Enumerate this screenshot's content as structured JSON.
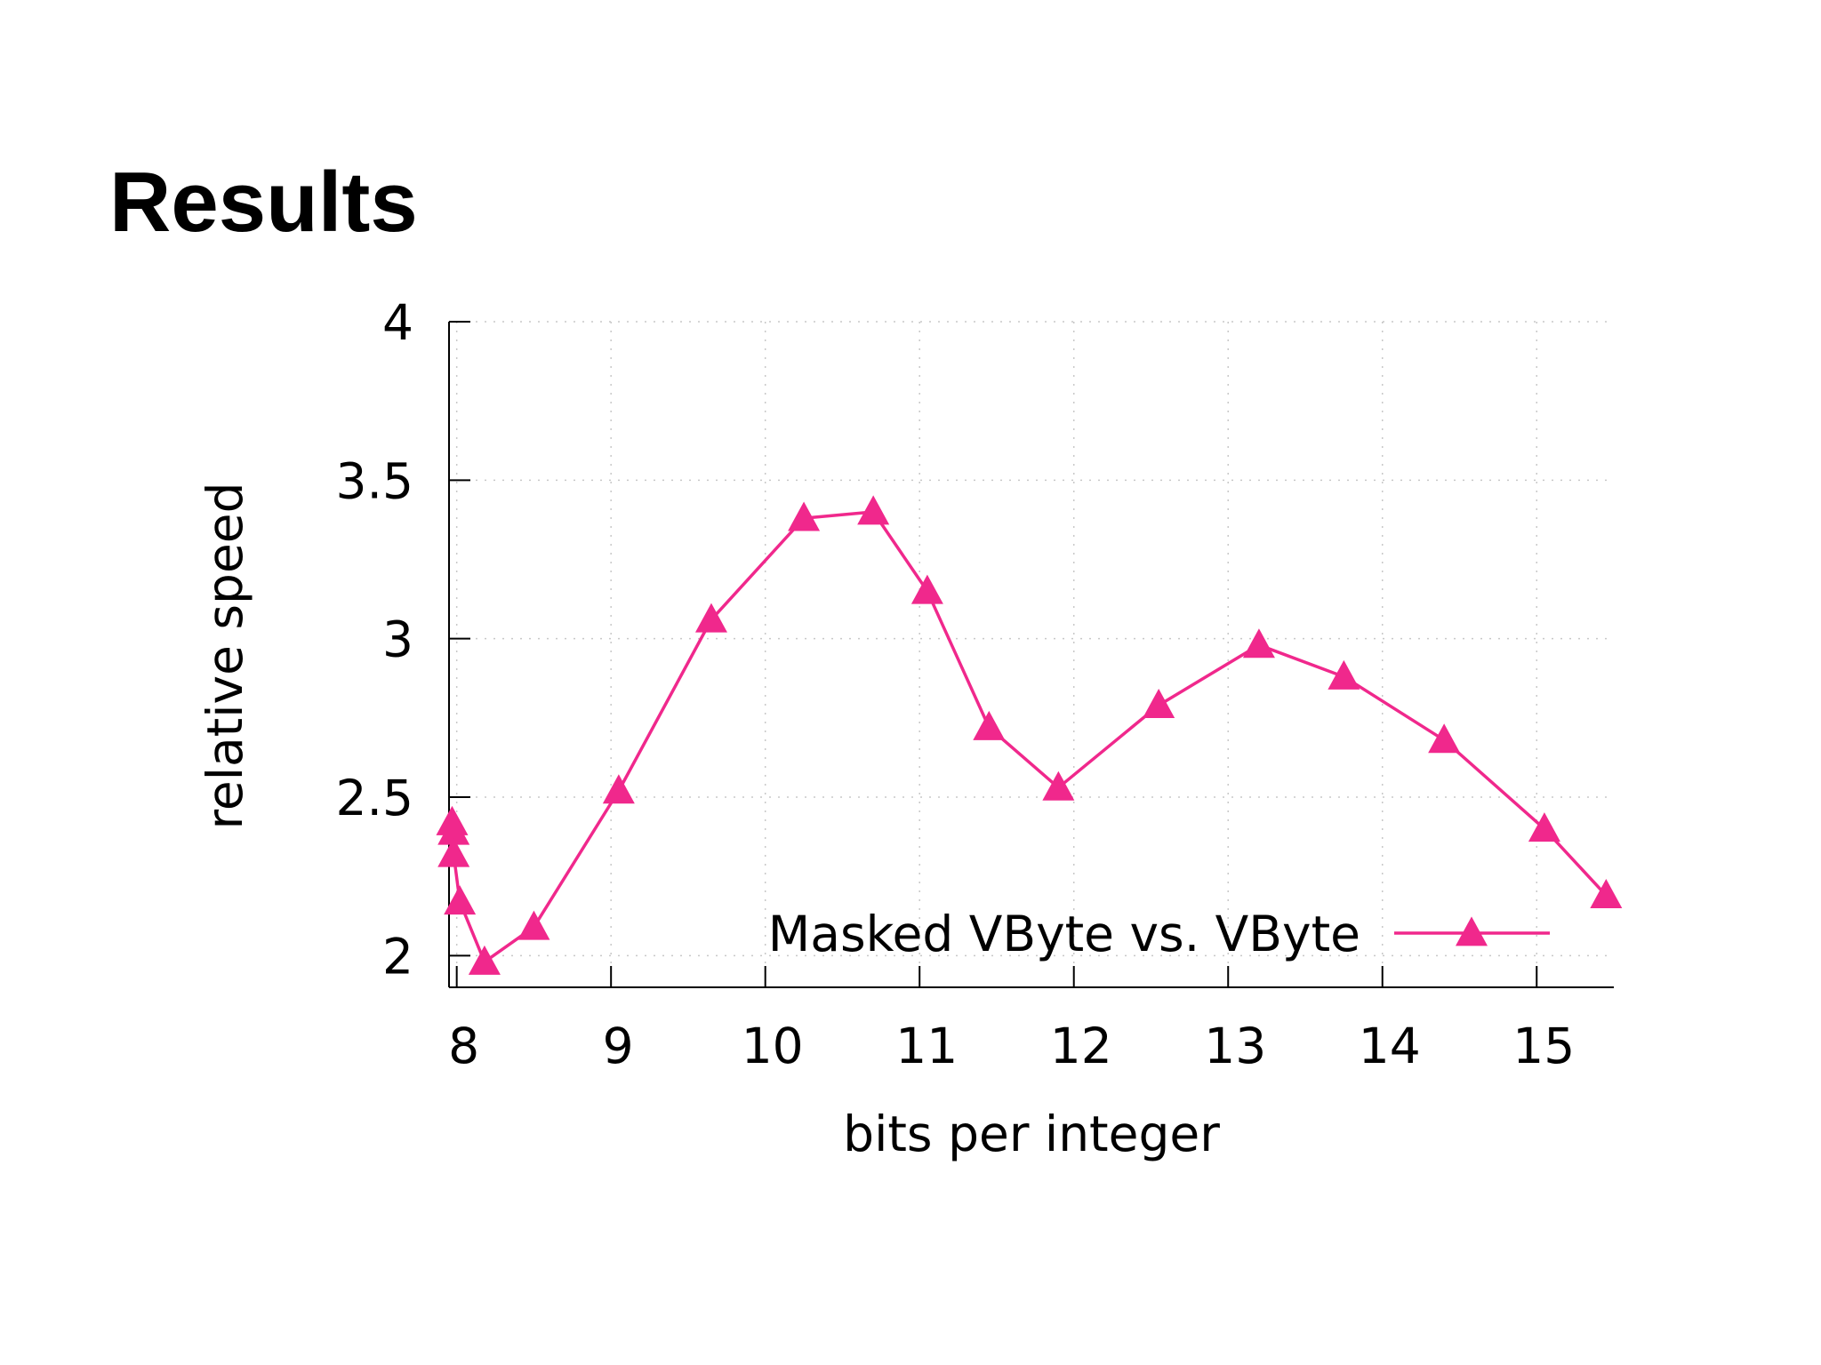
{
  "slide": {
    "title": "Results"
  },
  "chart_data": {
    "type": "line",
    "title": "",
    "xlabel": "bits per integer",
    "ylabel": "relative speed",
    "xlim": [
      7.95,
      15.5
    ],
    "ylim": [
      1.9,
      4.0
    ],
    "x_ticks": [
      8,
      9,
      10,
      11,
      12,
      13,
      14,
      15
    ],
    "y_ticks": [
      2,
      2.5,
      3,
      3.5,
      4
    ],
    "grid": true,
    "legend_position": "bottom-right",
    "series": [
      {
        "name": "Masked VByte vs.  VByte",
        "color": "#f0288c",
        "marker": "triangle",
        "x": [
          7.97,
          7.98,
          7.98,
          8.02,
          8.18,
          8.5,
          9.05,
          9.65,
          10.25,
          10.7,
          11.05,
          11.45,
          11.9,
          12.55,
          13.2,
          13.75,
          14.4,
          15.05,
          15.45
        ],
        "y": [
          2.42,
          2.39,
          2.32,
          2.17,
          1.98,
          2.09,
          2.52,
          3.06,
          3.38,
          3.4,
          3.15,
          2.72,
          2.53,
          2.79,
          2.98,
          2.88,
          2.68,
          2.4,
          2.19
        ]
      }
    ]
  }
}
